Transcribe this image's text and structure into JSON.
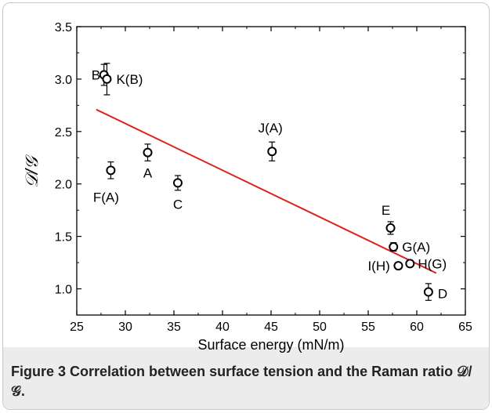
{
  "chart_data": {
    "type": "scatter",
    "xlabel": "Surface energy (mN/m)",
    "ylabel": "𝒟/𝒢",
    "xlim": [
      25,
      65
    ],
    "ylim": [
      0.75,
      3.5
    ],
    "x_ticks": [
      25,
      30,
      35,
      40,
      45,
      50,
      55,
      60,
      65
    ],
    "y_ticks": [
      1.0,
      1.5,
      2.0,
      2.5,
      3.0,
      3.5
    ],
    "x_tick_labels": [
      "25",
      "30",
      "35",
      "40",
      "45",
      "50",
      "55",
      "60",
      "65"
    ],
    "y_tick_labels": [
      "1.0",
      "1.5",
      "2.0",
      "2.5",
      "3.0",
      "3.5"
    ],
    "grid": false,
    "points": [
      {
        "label": "B",
        "x": 27.8,
        "y": 3.04,
        "err": 0.1
      },
      {
        "label": "K(B)",
        "x": 28.1,
        "y": 3.0,
        "err": 0.15
      },
      {
        "label": "F(A)",
        "x": 28.5,
        "y": 2.13,
        "err": 0.08
      },
      {
        "label": "A",
        "x": 32.3,
        "y": 2.3,
        "err": 0.08
      },
      {
        "label": "C",
        "x": 35.4,
        "y": 2.01,
        "err": 0.07
      },
      {
        "label": "J(A)",
        "x": 45.1,
        "y": 2.31,
        "err": 0.09
      },
      {
        "label": "E",
        "x": 57.3,
        "y": 1.58,
        "err": 0.06
      },
      {
        "label": "G(A)",
        "x": 57.6,
        "y": 1.4,
        "err": 0.04
      },
      {
        "label": "I(H)",
        "x": 58.1,
        "y": 1.22,
        "err": 0.03
      },
      {
        "label": "H(G)",
        "x": 59.3,
        "y": 1.24,
        "err": 0.03
      },
      {
        "label": "D",
        "x": 61.2,
        "y": 0.97,
        "err": 0.08
      }
    ],
    "fit_line": {
      "color": "#e0201c",
      "x": [
        27.0,
        62.0
      ],
      "y": [
        2.71,
        1.15
      ]
    }
  },
  "caption": {
    "label": "Figure 3",
    "text": "Correlation between surface tension and the Raman ratio 𝒟/𝒢."
  }
}
